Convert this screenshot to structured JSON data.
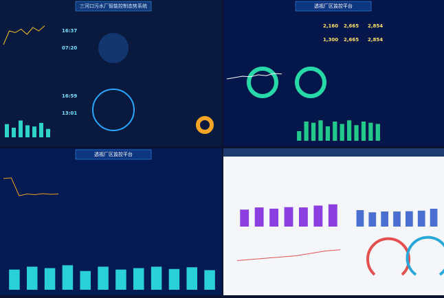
{
  "panels": [
    {
      "title": "三河口污水厂智能控制态势系统",
      "stats": [
        "16:37",
        "07:20",
        "16:59",
        "13:01"
      ],
      "ylim": [
        0,
        100
      ],
      "bars": [
        55,
        40,
        70,
        50,
        45,
        60,
        35
      ],
      "line": [
        20,
        60,
        55,
        65,
        50,
        70,
        60,
        75
      ]
    },
    {
      "title": "透视厂区监控平台",
      "stats": [
        "2,160",
        "2,665",
        "2,854",
        "1,300",
        "2,665",
        "2,854"
      ],
      "ylim": [
        0,
        100
      ],
      "bars": [
        40,
        80,
        75,
        85,
        60,
        80,
        70,
        85,
        65,
        80,
        75,
        70
      ],
      "line": [
        50,
        55,
        60,
        58,
        65,
        62,
        70,
        68
      ]
    },
    {
      "title": "透视厂区监控平台",
      "stats": [],
      "ylim": [
        0,
        100
      ],
      "bars": [
        70,
        80,
        75,
        85,
        65,
        80,
        70,
        75,
        80,
        72,
        78,
        68
      ],
      "line": [
        80,
        82,
        30,
        35,
        33,
        36,
        34,
        35
      ]
    },
    {
      "title": "",
      "stats": [],
      "ylim": [
        0,
        100
      ],
      "bars": [
        55,
        62,
        58,
        63,
        62,
        68,
        72
      ],
      "bars2": [
        60,
        52,
        55,
        55,
        56,
        58,
        65
      ],
      "line": [
        30,
        35,
        40,
        45,
        50,
        60,
        70,
        75
      ]
    }
  ]
}
